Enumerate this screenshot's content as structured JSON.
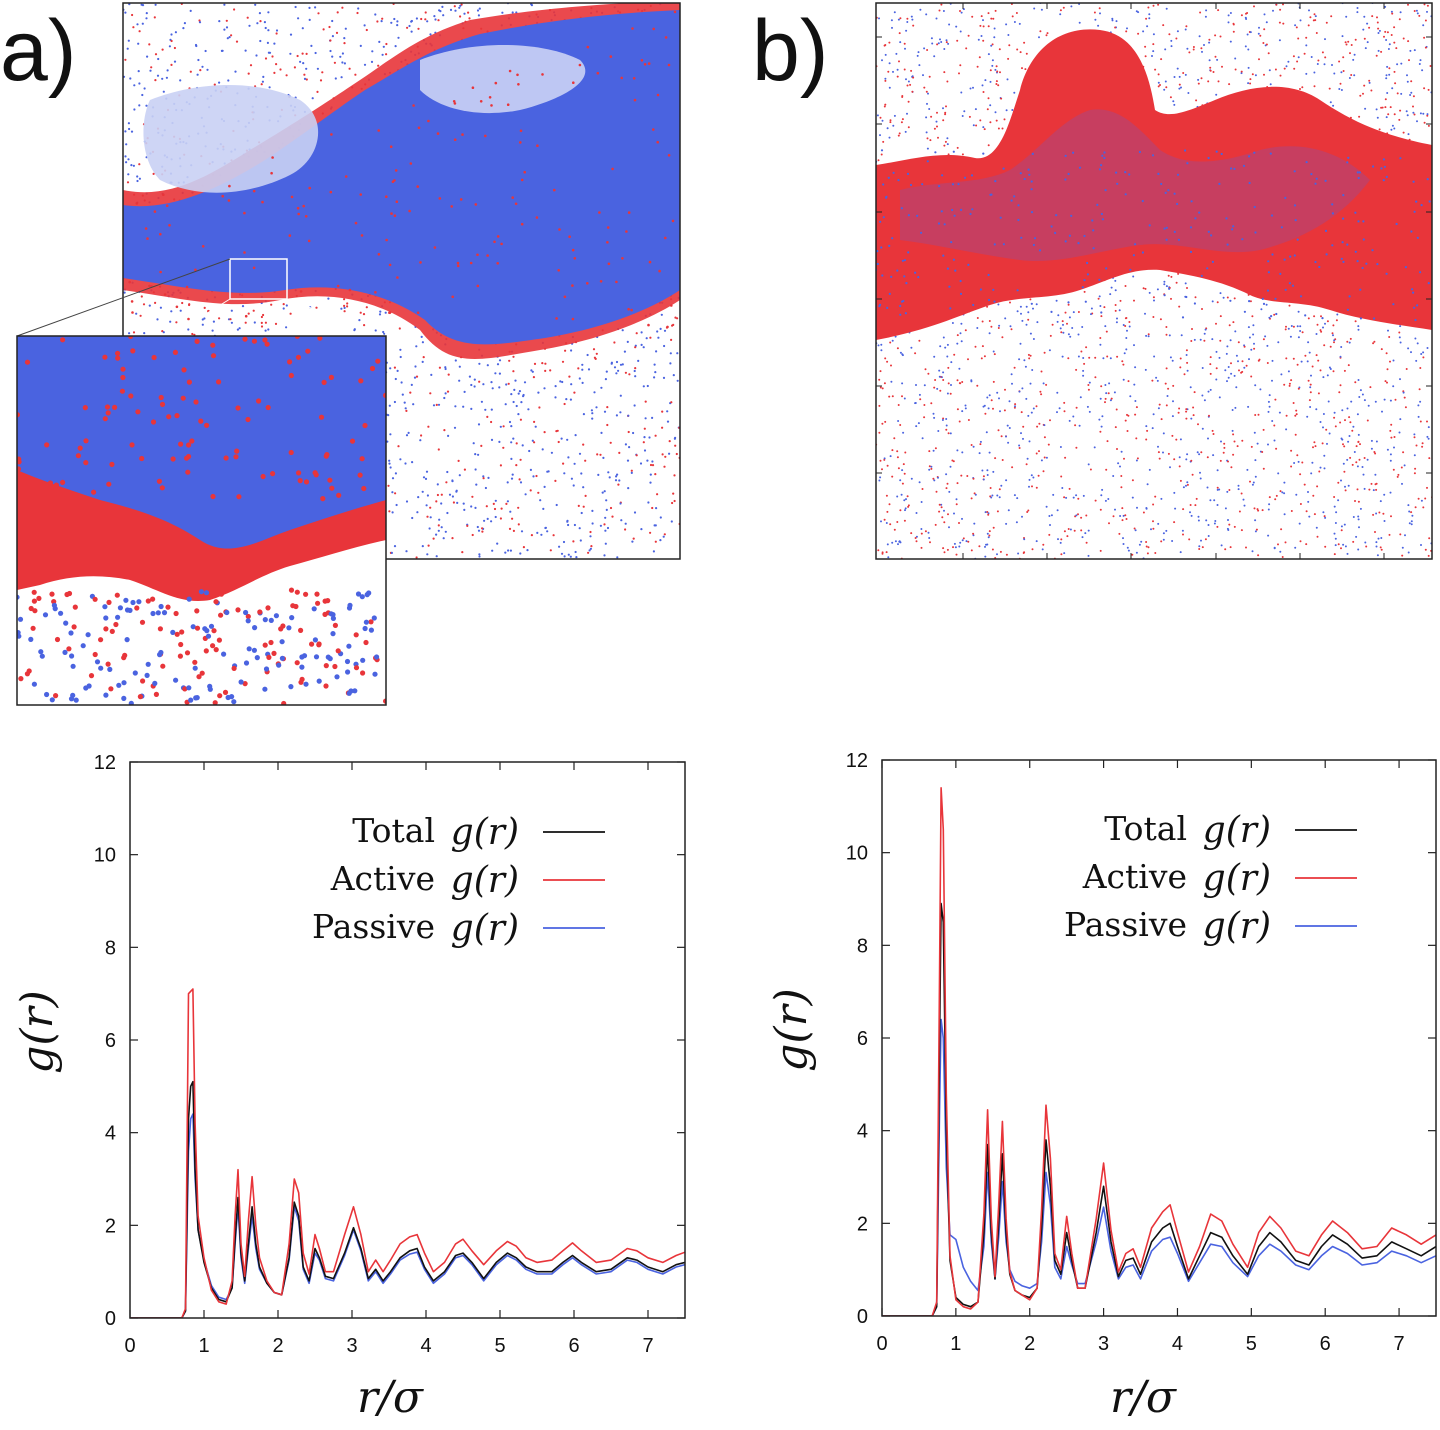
{
  "panels": {
    "a_label": "a)",
    "b_label": "b)"
  },
  "colors": {
    "active": "#e8353a",
    "passive": "#4a63e0",
    "total": "#111111",
    "white": "#ffffff"
  },
  "chart_data": [
    {
      "type": "line",
      "panel": "a",
      "xlabel": "r/σ",
      "ylabel": "g(r)",
      "xlim": [
        0,
        7.5
      ],
      "ylim": [
        0,
        12
      ],
      "xticks": [
        0,
        1,
        2,
        3,
        4,
        5,
        6,
        7
      ],
      "yticks": [
        0,
        2,
        4,
        6,
        8,
        10,
        12
      ],
      "legend_position": "top-right",
      "series": [
        {
          "name": "Total",
          "math": "g(r)",
          "color": "#111111",
          "x": [
            0,
            0.7,
            0.75,
            0.79,
            0.82,
            0.85,
            0.88,
            0.92,
            1.0,
            1.1,
            1.2,
            1.3,
            1.38,
            1.42,
            1.46,
            1.5,
            1.55,
            1.6,
            1.65,
            1.7,
            1.75,
            1.85,
            1.95,
            2.05,
            2.15,
            2.22,
            2.28,
            2.34,
            2.42,
            2.5,
            2.56,
            2.64,
            2.75,
            2.9,
            3.02,
            3.12,
            3.22,
            3.32,
            3.42,
            3.52,
            3.65,
            3.78,
            3.88,
            3.98,
            4.1,
            4.25,
            4.4,
            4.5,
            4.62,
            4.78,
            4.95,
            5.1,
            5.22,
            5.35,
            5.5,
            5.7,
            5.85,
            5.98,
            6.1,
            6.3,
            6.5,
            6.72,
            6.85,
            7.0,
            7.2,
            7.38,
            7.5
          ],
          "y": [
            0,
            0,
            0.15,
            4.3,
            5.0,
            5.1,
            3.2,
            1.9,
            1.2,
            0.65,
            0.4,
            0.35,
            0.65,
            1.7,
            2.6,
            1.4,
            0.8,
            1.6,
            2.4,
            1.6,
            1.1,
            0.75,
            0.55,
            0.5,
            1.3,
            2.5,
            2.2,
            1.1,
            0.8,
            1.5,
            1.3,
            0.9,
            0.85,
            1.4,
            1.95,
            1.5,
            0.85,
            1.05,
            0.8,
            1.0,
            1.3,
            1.45,
            1.5,
            1.1,
            0.8,
            1.0,
            1.35,
            1.4,
            1.2,
            0.85,
            1.2,
            1.4,
            1.3,
            1.1,
            1.0,
            1.0,
            1.2,
            1.35,
            1.2,
            1.0,
            1.05,
            1.3,
            1.25,
            1.1,
            1.0,
            1.15,
            1.2
          ]
        },
        {
          "name": "Active",
          "math": "g(r)",
          "color": "#e8353a",
          "x": [
            0,
            0.7,
            0.75,
            0.79,
            0.82,
            0.85,
            0.88,
            0.92,
            1.0,
            1.1,
            1.2,
            1.3,
            1.38,
            1.42,
            1.46,
            1.5,
            1.55,
            1.6,
            1.65,
            1.7,
            1.75,
            1.85,
            1.95,
            2.05,
            2.15,
            2.22,
            2.28,
            2.34,
            2.42,
            2.5,
            2.56,
            2.64,
            2.75,
            2.9,
            3.02,
            3.12,
            3.22,
            3.32,
            3.42,
            3.52,
            3.65,
            3.78,
            3.88,
            3.98,
            4.1,
            4.25,
            4.4,
            4.5,
            4.62,
            4.78,
            4.95,
            5.1,
            5.22,
            5.35,
            5.5,
            5.7,
            5.85,
            5.98,
            6.1,
            6.3,
            6.5,
            6.72,
            6.85,
            7.0,
            7.2,
            7.38,
            7.5
          ],
          "y": [
            0,
            0,
            0.2,
            7.0,
            7.05,
            7.1,
            4.2,
            2.2,
            1.3,
            0.6,
            0.35,
            0.3,
            0.8,
            2.2,
            3.2,
            1.6,
            0.9,
            2.1,
            3.05,
            2.0,
            1.3,
            0.8,
            0.55,
            0.5,
            1.6,
            3.0,
            2.7,
            1.4,
            0.95,
            1.8,
            1.5,
            1.0,
            1.0,
            1.8,
            2.4,
            1.8,
            1.0,
            1.25,
            1.0,
            1.25,
            1.6,
            1.75,
            1.8,
            1.4,
            1.0,
            1.2,
            1.6,
            1.7,
            1.45,
            1.15,
            1.45,
            1.65,
            1.55,
            1.3,
            1.2,
            1.25,
            1.45,
            1.62,
            1.45,
            1.2,
            1.25,
            1.5,
            1.45,
            1.3,
            1.2,
            1.35,
            1.42
          ]
        },
        {
          "name": "Passive",
          "math": "g(r)",
          "color": "#4a63e0",
          "x": [
            0,
            0.7,
            0.75,
            0.79,
            0.82,
            0.85,
            0.88,
            0.92,
            1.0,
            1.1,
            1.2,
            1.3,
            1.38,
            1.42,
            1.46,
            1.5,
            1.55,
            1.6,
            1.65,
            1.7,
            1.75,
            1.85,
            1.95,
            2.05,
            2.15,
            2.22,
            2.28,
            2.34,
            2.42,
            2.5,
            2.56,
            2.64,
            2.75,
            2.9,
            3.02,
            3.12,
            3.22,
            3.32,
            3.42,
            3.52,
            3.65,
            3.78,
            3.88,
            3.98,
            4.1,
            4.25,
            4.4,
            4.5,
            4.62,
            4.78,
            4.95,
            5.1,
            5.22,
            5.35,
            5.5,
            5.7,
            5.85,
            5.98,
            6.1,
            6.3,
            6.5,
            6.72,
            6.85,
            7.0,
            7.2,
            7.38,
            7.5
          ],
          "y": [
            0,
            0,
            0.15,
            3.6,
            4.3,
            4.4,
            3.0,
            1.9,
            1.25,
            0.7,
            0.45,
            0.4,
            0.65,
            1.6,
            2.4,
            1.3,
            0.75,
            1.5,
            2.2,
            1.5,
            1.05,
            0.75,
            0.55,
            0.5,
            1.25,
            2.4,
            2.1,
            1.05,
            0.75,
            1.4,
            1.25,
            0.85,
            0.8,
            1.35,
            1.9,
            1.45,
            0.8,
            1.0,
            0.75,
            0.95,
            1.25,
            1.38,
            1.42,
            1.05,
            0.75,
            0.95,
            1.3,
            1.35,
            1.15,
            0.8,
            1.15,
            1.35,
            1.25,
            1.05,
            0.95,
            0.95,
            1.15,
            1.3,
            1.15,
            0.95,
            1.0,
            1.25,
            1.2,
            1.05,
            0.95,
            1.1,
            1.15
          ]
        }
      ]
    },
    {
      "type": "line",
      "panel": "b",
      "xlabel": "r/σ",
      "ylabel": "g(r)",
      "xlim": [
        0,
        7.5
      ],
      "ylim": [
        0,
        12
      ],
      "xticks": [
        0,
        1,
        2,
        3,
        4,
        5,
        6,
        7
      ],
      "yticks": [
        0,
        2,
        4,
        6,
        8,
        10,
        12
      ],
      "legend_position": "top-right",
      "series": [
        {
          "name": "Total",
          "math": "g(r)",
          "color": "#111111",
          "x": [
            0,
            0.68,
            0.74,
            0.78,
            0.8,
            0.83,
            0.87,
            0.92,
            1.0,
            1.1,
            1.2,
            1.3,
            1.38,
            1.43,
            1.48,
            1.53,
            1.58,
            1.63,
            1.68,
            1.73,
            1.8,
            1.9,
            2.0,
            2.1,
            2.16,
            2.22,
            2.28,
            2.34,
            2.42,
            2.5,
            2.57,
            2.65,
            2.75,
            2.9,
            3.0,
            3.1,
            3.2,
            3.3,
            3.4,
            3.5,
            3.65,
            3.8,
            3.9,
            4.0,
            4.15,
            4.3,
            4.45,
            4.6,
            4.75,
            4.95,
            5.1,
            5.25,
            5.4,
            5.6,
            5.78,
            5.95,
            6.1,
            6.3,
            6.5,
            6.7,
            6.9,
            7.1,
            7.3,
            7.5
          ],
          "y": [
            0,
            0,
            0.2,
            6.0,
            8.9,
            8.5,
            4.0,
            1.2,
            0.4,
            0.25,
            0.2,
            0.3,
            1.8,
            3.7,
            1.8,
            0.8,
            2.0,
            3.5,
            1.8,
            0.9,
            0.55,
            0.45,
            0.4,
            0.6,
            1.9,
            3.8,
            2.8,
            1.2,
            0.9,
            1.8,
            1.2,
            0.6,
            0.6,
            1.8,
            2.8,
            1.6,
            0.85,
            1.2,
            1.25,
            0.9,
            1.6,
            1.9,
            2.0,
            1.5,
            0.8,
            1.3,
            1.8,
            1.7,
            1.3,
            0.9,
            1.5,
            1.8,
            1.6,
            1.2,
            1.1,
            1.5,
            1.75,
            1.55,
            1.25,
            1.3,
            1.6,
            1.45,
            1.3,
            1.5
          ]
        },
        {
          "name": "Active",
          "math": "g(r)",
          "color": "#e8353a",
          "x": [
            0,
            0.68,
            0.74,
            0.78,
            0.8,
            0.83,
            0.87,
            0.92,
            1.0,
            1.1,
            1.2,
            1.3,
            1.38,
            1.43,
            1.48,
            1.53,
            1.58,
            1.63,
            1.68,
            1.73,
            1.8,
            1.9,
            2.0,
            2.1,
            2.16,
            2.22,
            2.28,
            2.34,
            2.42,
            2.5,
            2.57,
            2.65,
            2.75,
            2.9,
            3.0,
            3.1,
            3.2,
            3.3,
            3.4,
            3.5,
            3.65,
            3.8,
            3.9,
            4.0,
            4.15,
            4.3,
            4.45,
            4.6,
            4.75,
            4.95,
            5.1,
            5.25,
            5.4,
            5.6,
            5.78,
            5.95,
            6.1,
            6.3,
            6.5,
            6.7,
            6.9,
            7.1,
            7.3,
            7.5
          ],
          "y": [
            0,
            0,
            0.3,
            7.5,
            11.4,
            10.5,
            4.8,
            1.3,
            0.35,
            0.2,
            0.15,
            0.3,
            2.2,
            4.45,
            2.1,
            0.85,
            2.4,
            4.2,
            2.1,
            0.95,
            0.55,
            0.45,
            0.35,
            0.6,
            2.3,
            4.55,
            3.4,
            1.35,
            1.0,
            2.15,
            1.35,
            0.6,
            0.6,
            2.1,
            3.3,
            1.85,
            0.95,
            1.35,
            1.45,
            1.05,
            1.9,
            2.25,
            2.4,
            1.8,
            0.95,
            1.5,
            2.2,
            2.05,
            1.55,
            1.05,
            1.8,
            2.15,
            1.9,
            1.4,
            1.3,
            1.75,
            2.05,
            1.8,
            1.45,
            1.5,
            1.9,
            1.75,
            1.55,
            1.75
          ]
        },
        {
          "name": "Passive",
          "math": "g(r)",
          "color": "#4a63e0",
          "x": [
            0,
            0.68,
            0.74,
            0.78,
            0.8,
            0.83,
            0.87,
            0.92,
            1.0,
            1.1,
            1.2,
            1.3,
            1.38,
            1.43,
            1.48,
            1.53,
            1.58,
            1.63,
            1.68,
            1.73,
            1.8,
            1.9,
            2.0,
            2.1,
            2.16,
            2.22,
            2.28,
            2.34,
            2.42,
            2.5,
            2.57,
            2.65,
            2.75,
            2.9,
            3.0,
            3.1,
            3.2,
            3.3,
            3.4,
            3.5,
            3.65,
            3.8,
            3.9,
            4.0,
            4.15,
            4.3,
            4.45,
            4.6,
            4.75,
            4.95,
            5.1,
            5.25,
            5.4,
            5.6,
            5.78,
            5.95,
            6.1,
            6.3,
            6.5,
            6.7,
            6.9,
            7.1,
            7.3,
            7.5
          ],
          "y": [
            0,
            0,
            0.2,
            4.5,
            6.4,
            6.0,
            3.2,
            1.75,
            1.65,
            1.05,
            0.75,
            0.55,
            1.5,
            3.1,
            1.6,
            0.8,
            1.7,
            2.9,
            1.6,
            1.0,
            0.75,
            0.65,
            0.6,
            0.7,
            1.6,
            3.1,
            2.4,
            1.05,
            0.8,
            1.5,
            1.1,
            0.7,
            0.7,
            1.6,
            2.35,
            1.4,
            0.8,
            1.05,
            1.1,
            0.8,
            1.4,
            1.65,
            1.7,
            1.35,
            0.75,
            1.15,
            1.55,
            1.5,
            1.15,
            0.85,
            1.3,
            1.55,
            1.4,
            1.1,
            1.0,
            1.3,
            1.5,
            1.35,
            1.1,
            1.15,
            1.4,
            1.3,
            1.15,
            1.3
          ]
        }
      ]
    }
  ]
}
